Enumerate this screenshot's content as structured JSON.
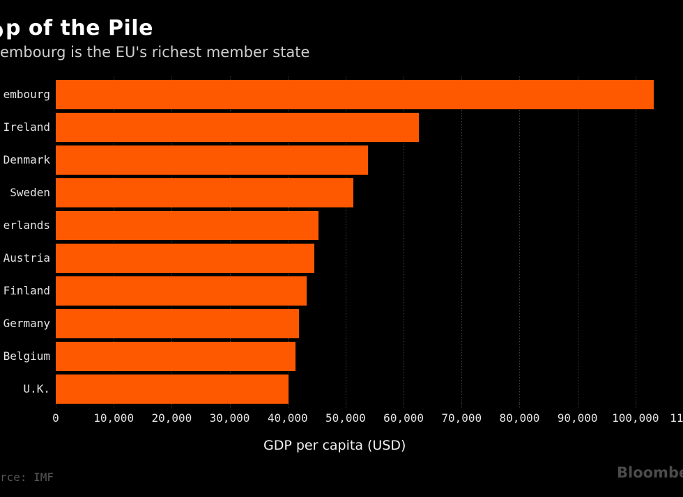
{
  "header": {
    "title": "p of the Pile",
    "subtitle": "embourg is the EU's richest member state"
  },
  "footer": {
    "source": "rce: IMF",
    "watermark": "Bloombe"
  },
  "colors": {
    "background": "#000000",
    "bar": "#fe5800",
    "gridline": "#454545",
    "title": "#ffffff",
    "subtitle": "#cfcfcf",
    "tick_label": "#e4e4e4",
    "axis_title": "#f2f2f2",
    "source": "#565656",
    "watermark": "#4b4b4b"
  },
  "chart_data": {
    "type": "bar",
    "orientation": "horizontal",
    "title": "p of the Pile",
    "subtitle": "embourg is the EU's richest member state",
    "categories": [
      "embourg",
      "Ireland",
      "Denmark",
      "Sweden",
      "erlands",
      "Austria",
      "Finland",
      "Germany",
      "Belgium",
      "U.K."
    ],
    "values": [
      103200,
      62600,
      53800,
      51300,
      45300,
      44600,
      43300,
      42000,
      41400,
      40100
    ],
    "xlabel": "GDP per capita (USD)",
    "ylabel": "",
    "xlim": [
      0,
      110000
    ],
    "x_tick_step": 10000,
    "x_ticks": [
      {
        "label": "0",
        "v": 0
      },
      {
        "label": "10,000",
        "v": 10000
      },
      {
        "label": "20,000",
        "v": 20000
      },
      {
        "label": "30,000",
        "v": 30000
      },
      {
        "label": "40,000",
        "v": 40000
      },
      {
        "label": "50,000",
        "v": 50000
      },
      {
        "label": "60,000",
        "v": 60000
      },
      {
        "label": "70,000",
        "v": 70000
      },
      {
        "label": "80,000",
        "v": 80000
      },
      {
        "label": "90,000",
        "v": 90000
      },
      {
        "label": "100,000",
        "v": 100000
      },
      {
        "label": "11",
        "v": 110000,
        "align": "left"
      }
    ],
    "grid": "vertical-dotted",
    "legend": "none"
  }
}
